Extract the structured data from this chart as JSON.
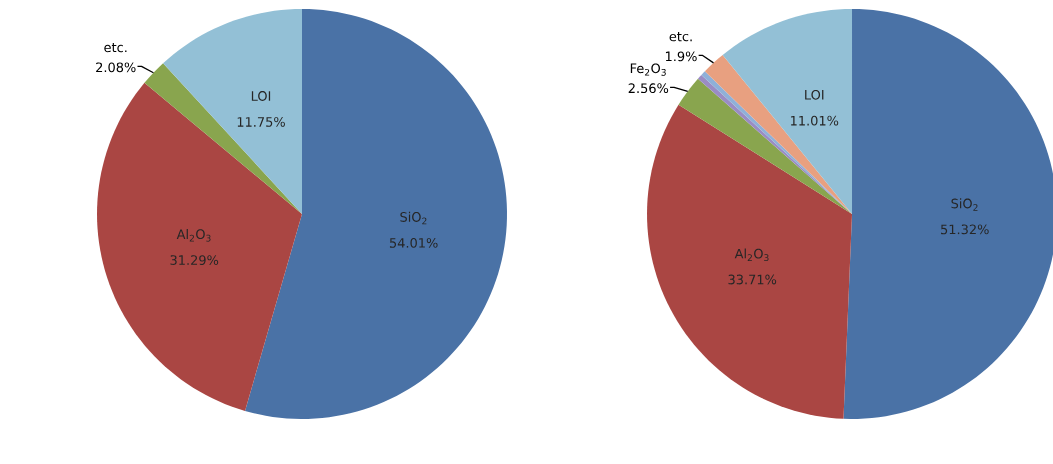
{
  "chart_data": [
    {
      "type": "pie",
      "categories": [
        "SiO$_{2}$",
        "Al$_{2}$O$_{3}$",
        "etc.",
        "LOI"
      ],
      "values": [
        54.01,
        31.29,
        2.08,
        11.75
      ],
      "colors": [
        "#4a72a6",
        "#aa4643",
        "#89a54e",
        "#93c0d6"
      ],
      "value_labels": [
        "54.01%",
        "31.29%",
        "2.08%",
        "11.75%"
      ]
    },
    {
      "type": "pie",
      "categories": [
        "SiO$_{2}$",
        "Al$_{2}$O$_{3}$",
        "Fe$_{2}$O$_{3}$",
        null,
        null,
        "etc.",
        "LOI"
      ],
      "values": [
        51.32,
        33.71,
        2.56,
        0.4,
        0.4,
        1.9,
        11.01
      ],
      "colors": [
        "#4a72a6",
        "#aa4643",
        "#89a54e",
        "#9a8cc4",
        "#8fb0d8",
        "#e8a080",
        "#93c0d6"
      ],
      "value_labels": [
        "51.32%",
        "33.71%",
        "2.56%",
        null,
        null,
        "1.9%",
        "11.01%"
      ]
    }
  ]
}
